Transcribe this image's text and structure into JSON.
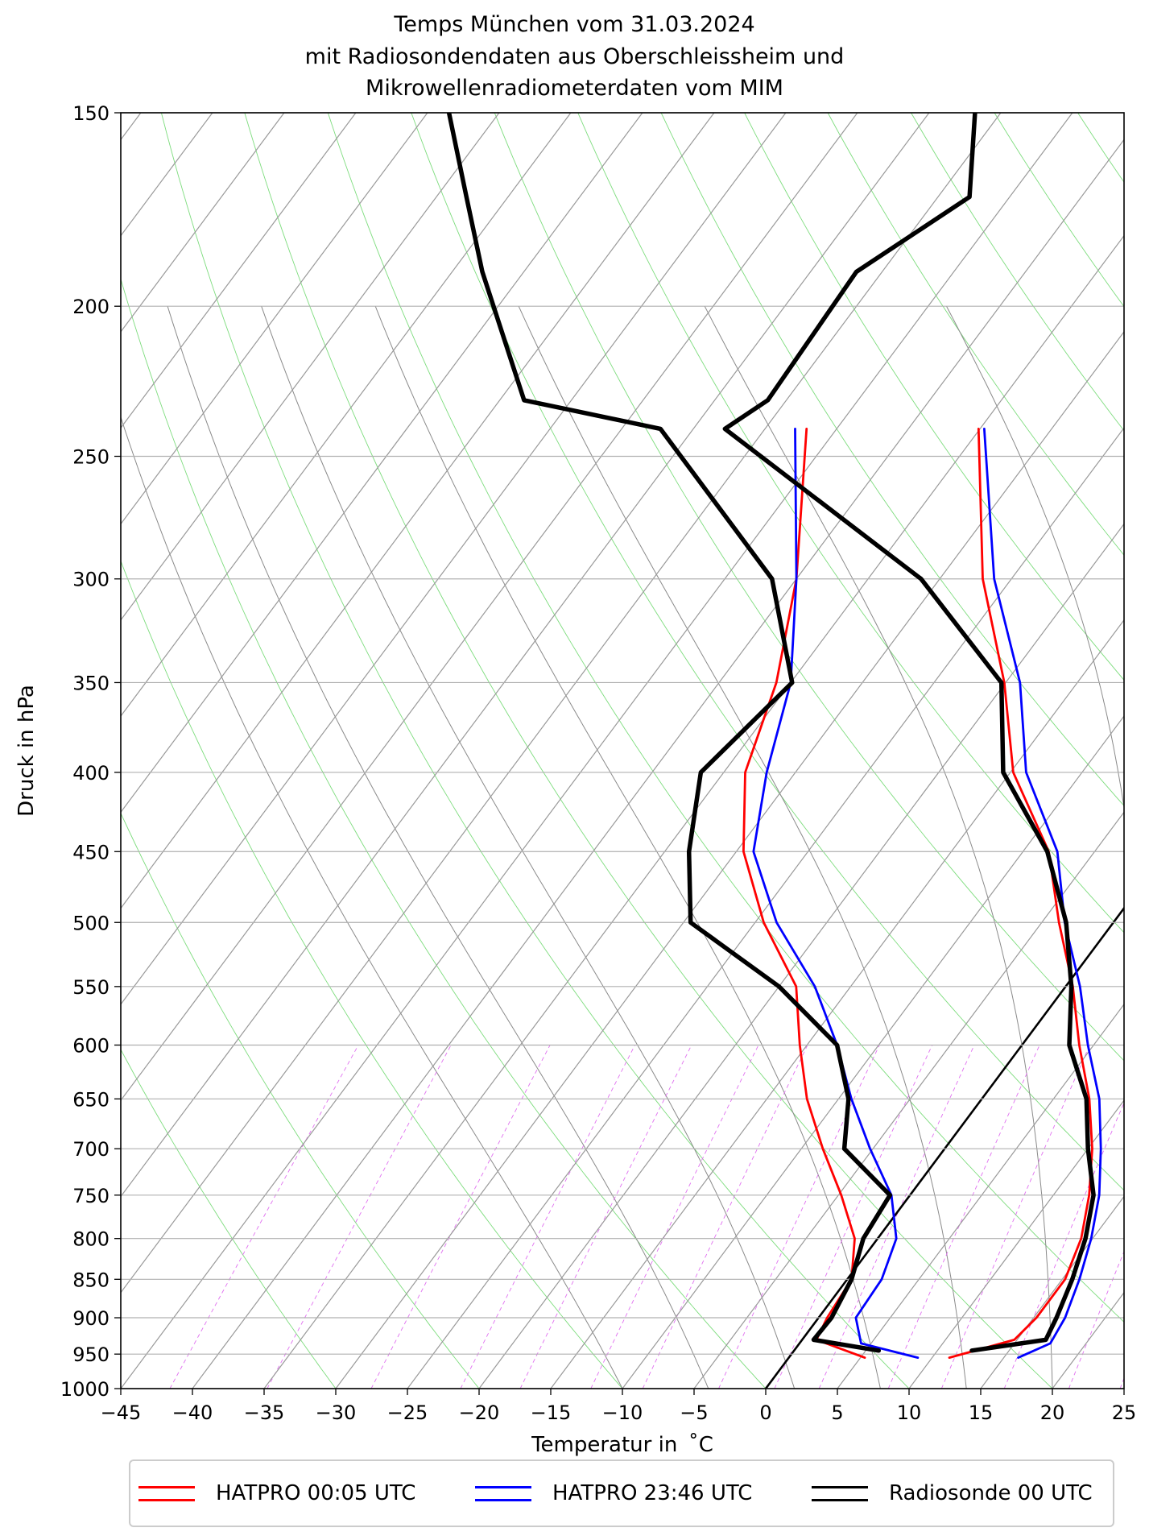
{
  "title": {
    "line1": "Temps München vom 31.03.2024",
    "line2": "mit Radiosondendaten aus Oberschleissheim und",
    "line3": "Mikrowellenradiometerdaten vom MIM"
  },
  "axes": {
    "xlabel": "Temperatur in  ˚C",
    "ylabel": "Druck in hPa"
  },
  "legend": [
    {
      "label": "HATPRO 00:05 UTC",
      "color": "#ff0000"
    },
    {
      "label": "HATPRO 23:46 UTC",
      "color": "#0000ff"
    },
    {
      "label": "Radiosonde 00 UTC",
      "color": "#000000"
    }
  ],
  "chart_data": {
    "type": "line",
    "subtype": "skew-T log-p diagram",
    "xlim": [
      -45,
      25
    ],
    "ylim": [
      1000,
      150
    ],
    "y_scale": "log",
    "grid": true,
    "legend_position": "bottom",
    "x_ticks": [
      -45,
      -40,
      -35,
      -30,
      -25,
      -20,
      -15,
      -10,
      -5,
      0,
      5,
      10,
      15,
      20,
      25
    ],
    "x_tick_labels": [
      "−45",
      "−40",
      "−35",
      "−30",
      "−25",
      "−20",
      "−15",
      "−10",
      "−5",
      "0",
      "5",
      "10",
      "15",
      "20",
      "25"
    ],
    "y_ticks": [
      150,
      200,
      250,
      300,
      350,
      400,
      450,
      500,
      550,
      600,
      650,
      700,
      750,
      800,
      850,
      900,
      950,
      1000
    ],
    "y_tick_labels": [
      "150",
      "200",
      "250",
      "300",
      "350",
      "400",
      "450",
      "500",
      "550",
      "600",
      "650",
      "700",
      "750",
      "800",
      "850",
      "900",
      "950",
      "1000"
    ],
    "series": [
      {
        "name": "HATPRO 00:05 UTC",
        "color": "#ff0000",
        "points": [
          {
            "p": 240,
            "T": -35.1,
            "Td": -47.1
          },
          {
            "p": 300,
            "T": -27.0,
            "Td": -40.0
          },
          {
            "p": 350,
            "T": -20.1,
            "Td": -36.0
          },
          {
            "p": 400,
            "T": -14.8,
            "Td": -33.5
          },
          {
            "p": 450,
            "T": -8.2,
            "Td": -29.5
          },
          {
            "p": 500,
            "T": -3.8,
            "Td": -24.4
          },
          {
            "p": 550,
            "T": 0.5,
            "Td": -18.8
          },
          {
            "p": 600,
            "T": 4.0,
            "Td": -15.5
          },
          {
            "p": 650,
            "T": 7.5,
            "Td": -12.2
          },
          {
            "p": 700,
            "T": 10.3,
            "Td": -8.5
          },
          {
            "p": 750,
            "T": 12.5,
            "Td": -4.8
          },
          {
            "p": 800,
            "T": 14.2,
            "Td": -1.6
          },
          {
            "p": 850,
            "T": 15.2,
            "Td": 0.3
          },
          {
            "p": 900,
            "T": 15.2,
            "Td": 0.6
          },
          {
            "p": 930,
            "T": 14.8,
            "Td": 1.0
          },
          {
            "p": 955,
            "T": 11.2,
            "Td": 5.3
          }
        ]
      },
      {
        "name": "HATPRO 23:46 UTC",
        "color": "#0000ff",
        "points": [
          {
            "p": 240,
            "T": -34.7,
            "Td": -47.9
          },
          {
            "p": 300,
            "T": -26.2,
            "Td": -40.0
          },
          {
            "p": 350,
            "T": -19.0,
            "Td": -35.0
          },
          {
            "p": 400,
            "T": -13.9,
            "Td": -32.0
          },
          {
            "p": 450,
            "T": -7.6,
            "Td": -28.8
          },
          {
            "p": 500,
            "T": -3.4,
            "Td": -23.5
          },
          {
            "p": 550,
            "T": 1.0,
            "Td": -17.5
          },
          {
            "p": 600,
            "T": 4.6,
            "Td": -12.9
          },
          {
            "p": 650,
            "T": 8.2,
            "Td": -9.1
          },
          {
            "p": 700,
            "T": 10.9,
            "Td": -5.2
          },
          {
            "p": 750,
            "T": 13.2,
            "Td": -1.3
          },
          {
            "p": 800,
            "T": 14.9,
            "Td": 1.3
          },
          {
            "p": 850,
            "T": 16.2,
            "Td": 2.4
          },
          {
            "p": 900,
            "T": 17.2,
            "Td": 2.6
          },
          {
            "p": 935,
            "T": 17.5,
            "Td": 4.3
          },
          {
            "p": 955,
            "T": 16.0,
            "Td": 9.0
          }
        ]
      },
      {
        "name": "Radiosonde 00 UTC",
        "color": "#000000",
        "points": [
          {
            "p": 150,
            "T": -51.8,
            "Td": -88.5
          },
          {
            "p": 170,
            "T": -47.8,
            "Td": -82.9
          },
          {
            "p": 190,
            "T": -51.8,
            "Td": -77.9
          },
          {
            "p": 230,
            "T": -51.3,
            "Td": -68.3
          },
          {
            "p": 240,
            "T": -52.8,
            "Td": -57.3
          },
          {
            "p": 300,
            "T": -31.3,
            "Td": -41.7
          },
          {
            "p": 350,
            "T": -20.3,
            "Td": -34.9
          },
          {
            "p": 400,
            "T": -15.5,
            "Td": -36.6
          },
          {
            "p": 450,
            "T": -8.3,
            "Td": -33.3
          },
          {
            "p": 500,
            "T": -3.3,
            "Td": -29.5
          },
          {
            "p": 550,
            "T": 0.4,
            "Td": -20.0
          },
          {
            "p": 600,
            "T": 3.3,
            "Td": -12.9
          },
          {
            "p": 650,
            "T": 7.3,
            "Td": -9.3
          },
          {
            "p": 700,
            "T": 10.0,
            "Td": -7.0
          },
          {
            "p": 750,
            "T": 12.8,
            "Td": -1.4
          },
          {
            "p": 800,
            "T": 14.5,
            "Td": -1.0
          },
          {
            "p": 850,
            "T": 15.7,
            "Td": 0.3
          },
          {
            "p": 900,
            "T": 16.6,
            "Td": 0.9
          },
          {
            "p": 930,
            "T": 17.0,
            "Td": 0.8
          },
          {
            "p": 945,
            "T": 12.4,
            "Td": 5.9
          }
        ]
      }
    ]
  }
}
